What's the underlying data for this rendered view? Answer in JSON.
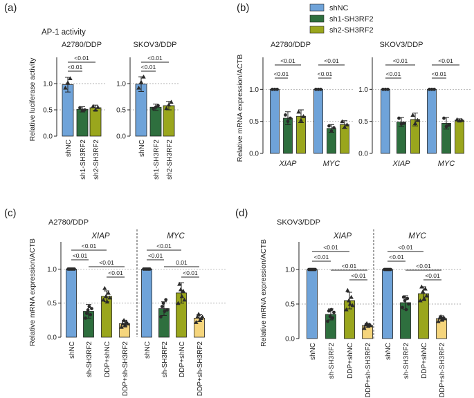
{
  "colors": {
    "shNC": "#6fa3d9",
    "sh1": "#2e6f3e",
    "sh2": "#9aa61d",
    "yellow": "#f5d57c",
    "subtitle": "#5b9bd5",
    "subtitle2": "#8ca321"
  },
  "panel_labels": [
    "(a)",
    "(b)",
    "(c)",
    "(d)"
  ],
  "legend": [
    "shNC",
    "sh1-SH3RF2",
    "sh2-SH3RF2"
  ],
  "chart_data": [
    {
      "id": "a",
      "type": "bar",
      "title": "AP-1 activity",
      "ylabel": "Relative luciferase activity",
      "ylim": [
        0,
        1.5
      ],
      "yticks": [
        "0.0",
        "0.5",
        "1.0"
      ],
      "groups": [
        {
          "subtitle": "A2780/DDP",
          "categories": [
            "shNC",
            "sh1-SH3RF2",
            "sh2-SH3RF2"
          ],
          "values": [
            0.98,
            0.51,
            0.54
          ],
          "errors": [
            0.14,
            0.05,
            0.05
          ],
          "points": [
            [
              1.02,
              0.92,
              1.1
            ],
            [
              0.49,
              0.54,
              0.5
            ],
            [
              0.5,
              0.57,
              0.55
            ]
          ],
          "brackets": [
            {
              "from": 0,
              "to": 2,
              "label": "<0.01"
            },
            {
              "from": 0,
              "to": 1,
              "label": "<0.01"
            }
          ]
        },
        {
          "subtitle": "SKOV3/DDP",
          "categories": [
            "shNC",
            "sh1-SH3RF2",
            "sh2-SH3RF2"
          ],
          "values": [
            0.99,
            0.55,
            0.58
          ],
          "errors": [
            0.14,
            0.06,
            0.08
          ],
          "points": [
            [
              1.03,
              0.92,
              1.13
            ],
            [
              0.55,
              0.52,
              0.58
            ],
            [
              0.6,
              0.53,
              0.65
            ]
          ],
          "brackets": [
            {
              "from": 0,
              "to": 2,
              "label": "<0.01"
            },
            {
              "from": 0,
              "to": 1,
              "label": "<0.01"
            }
          ]
        }
      ]
    },
    {
      "id": "b",
      "type": "bar",
      "ylabel": "Relative mRNA expression/ACTB",
      "ylim": [
        0,
        1.5
      ],
      "yticks": [
        "0.0",
        "0.5",
        "1.0"
      ],
      "series": [
        "shNC",
        "sh1-SH3RF2",
        "sh2-SH3RF2"
      ],
      "groups": [
        {
          "subtitle": "A2780/DDP",
          "genes": [
            {
              "name": "XIAP",
              "values": [
                1.0,
                0.55,
                0.58
              ],
              "errors": [
                0.0,
                0.1,
                0.1
              ],
              "points": [
                [
                  1,
                  1,
                  1
                ],
                [
                  0.5,
                  0.6,
                  0.55
                ],
                [
                  0.52,
                  0.65,
                  0.58
                ]
              ],
              "brackets": [
                {
                  "from": 0,
                  "to": 2,
                  "label": "<0.01"
                },
                {
                  "from": 0,
                  "to": 1,
                  "label": "<0.01"
                }
              ]
            },
            {
              "name": "MYC",
              "values": [
                1.0,
                0.39,
                0.45
              ],
              "errors": [
                0.0,
                0.06,
                0.06
              ],
              "points": [
                [
                  1,
                  1,
                  1
                ],
                [
                  0.35,
                  0.43,
                  0.4
                ],
                [
                  0.41,
                  0.5,
                  0.45
                ]
              ],
              "brackets": [
                {
                  "from": 0,
                  "to": 2,
                  "label": "<0.01"
                },
                {
                  "from": 0,
                  "to": 1,
                  "label": "<0.01"
                }
              ]
            }
          ]
        },
        {
          "subtitle": "SKOV3/DDP",
          "genes": [
            {
              "name": "XIAP",
              "values": [
                1.0,
                0.49,
                0.53
              ],
              "errors": [
                0.0,
                0.07,
                0.1
              ],
              "points": [
                [
                  1,
                  1,
                  1
                ],
                [
                  0.46,
                  0.55,
                  0.47
                ],
                [
                  0.47,
                  0.6,
                  0.52
                ]
              ],
              "brackets": [
                {
                  "from": 0,
                  "to": 2,
                  "label": "<0.01"
                },
                {
                  "from": 0,
                  "to": 1,
                  "label": "<0.01"
                }
              ]
            },
            {
              "name": "MYC",
              "values": [
                1.0,
                0.47,
                0.52
              ],
              "errors": [
                0.0,
                0.09,
                0.02
              ],
              "points": [
                [
                  1,
                  1,
                  1
                ],
                [
                  0.42,
                  0.55,
                  0.44
                ],
                [
                  0.51,
                  0.53,
                  0.52
                ]
              ],
              "brackets": [
                {
                  "from": 0,
                  "to": 2,
                  "label": "<0.01"
                },
                {
                  "from": 0,
                  "to": 1,
                  "label": "<0.01"
                }
              ]
            }
          ]
        }
      ]
    },
    {
      "id": "c",
      "type": "bar",
      "subtitle": "A2780/DDP",
      "ylabel": "Relative mRNA expression/ACTB",
      "ylim": [
        0,
        1.4
      ],
      "yticks": [
        "0.0",
        "0.5",
        "1.0"
      ],
      "categories": [
        "shNC",
        "sh-SH3RF2",
        "DDP+shNC",
        "DDP+sh-SH3RF2"
      ],
      "genes": [
        {
          "name": "XIAP",
          "values": [
            1.0,
            0.38,
            0.6,
            0.2
          ],
          "errors": [
            0.0,
            0.1,
            0.08,
            0.05
          ],
          "points": [
            [
              1,
              1,
              1,
              1,
              1,
              1
            ],
            [
              0.28,
              0.35,
              0.4,
              0.45,
              0.33,
              0.42
            ],
            [
              0.55,
              0.72,
              0.6,
              0.52,
              0.65,
              0.58
            ],
            [
              0.15,
              0.2,
              0.25,
              0.18,
              0.22,
              0.2
            ]
          ],
          "brackets": [
            {
              "from": 0,
              "to": 2,
              "label": "<0.01"
            },
            {
              "from": 0,
              "to": 1,
              "label": "<0.01"
            },
            {
              "from": 1,
              "to": 3,
              "label": "<0.01"
            },
            {
              "from": 2,
              "to": 3,
              "label": "<0.01"
            }
          ]
        },
        {
          "name": "MYC",
          "values": [
            1.0,
            0.42,
            0.65,
            0.28
          ],
          "errors": [
            0.0,
            0.1,
            0.15,
            0.05
          ],
          "points": [
            [
              1,
              1,
              1,
              1,
              1,
              1
            ],
            [
              0.3,
              0.45,
              0.5,
              0.38,
              0.55,
              0.4
            ],
            [
              0.5,
              0.78,
              0.7,
              0.6,
              0.68,
              0.55
            ],
            [
              0.22,
              0.3,
              0.34,
              0.25,
              0.28,
              0.3
            ]
          ],
          "brackets": [
            {
              "from": 0,
              "to": 2,
              "label": "<0.01"
            },
            {
              "from": 0,
              "to": 1,
              "label": "<0.01"
            },
            {
              "from": 1,
              "to": 3,
              "label": "0.01"
            },
            {
              "from": 2,
              "to": 3,
              "label": "<0.01"
            }
          ]
        }
      ]
    },
    {
      "id": "d",
      "type": "bar",
      "subtitle": "SKOV3/DDP",
      "ylabel": "Relative mRNA expression/ACTB",
      "ylim": [
        0,
        1.4
      ],
      "yticks": [
        "0.0",
        "0.5",
        "1.0"
      ],
      "categories": [
        "shNC",
        "sh-SH3RF2",
        "DDP+shNC",
        "DDP+sh-SH3RF2"
      ],
      "genes": [
        {
          "name": "XIAP",
          "values": [
            1.0,
            0.35,
            0.55,
            0.19
          ],
          "errors": [
            0.0,
            0.08,
            0.12,
            0.03
          ],
          "points": [
            [
              1,
              1,
              1,
              1,
              1,
              1
            ],
            [
              0.25,
              0.4,
              0.32,
              0.42,
              0.3,
              0.38
            ],
            [
              0.42,
              0.7,
              0.55,
              0.5,
              0.6,
              0.48
            ],
            [
              0.15,
              0.2,
              0.22,
              0.18,
              0.2,
              0.19
            ]
          ],
          "brackets": [
            {
              "from": 0,
              "to": 2,
              "label": "<0.01"
            },
            {
              "from": 0,
              "to": 1,
              "label": "<0.01"
            },
            {
              "from": 1,
              "to": 3,
              "label": "<0.01"
            },
            {
              "from": 2,
              "to": 3,
              "label": "<0.01"
            }
          ]
        },
        {
          "name": "MYC",
          "values": [
            1.0,
            0.52,
            0.65,
            0.29
          ],
          "errors": [
            0.0,
            0.1,
            0.1,
            0.04
          ],
          "points": [
            [
              1,
              1,
              1,
              1,
              1,
              1
            ],
            [
              0.45,
              0.6,
              0.55,
              0.42,
              0.58,
              0.5
            ],
            [
              0.55,
              0.75,
              0.68,
              0.58,
              0.72,
              0.62
            ],
            [
              0.25,
              0.3,
              0.32,
              0.28,
              0.3,
              0.29
            ]
          ],
          "brackets": [
            {
              "from": 0,
              "to": 2,
              "label": "<0.01"
            },
            {
              "from": 0,
              "to": 1,
              "label": "<0.01"
            },
            {
              "from": 1,
              "to": 3,
              "label": "<0.01"
            },
            {
              "from": 2,
              "to": 3,
              "label": "<0.01"
            }
          ]
        }
      ]
    }
  ]
}
